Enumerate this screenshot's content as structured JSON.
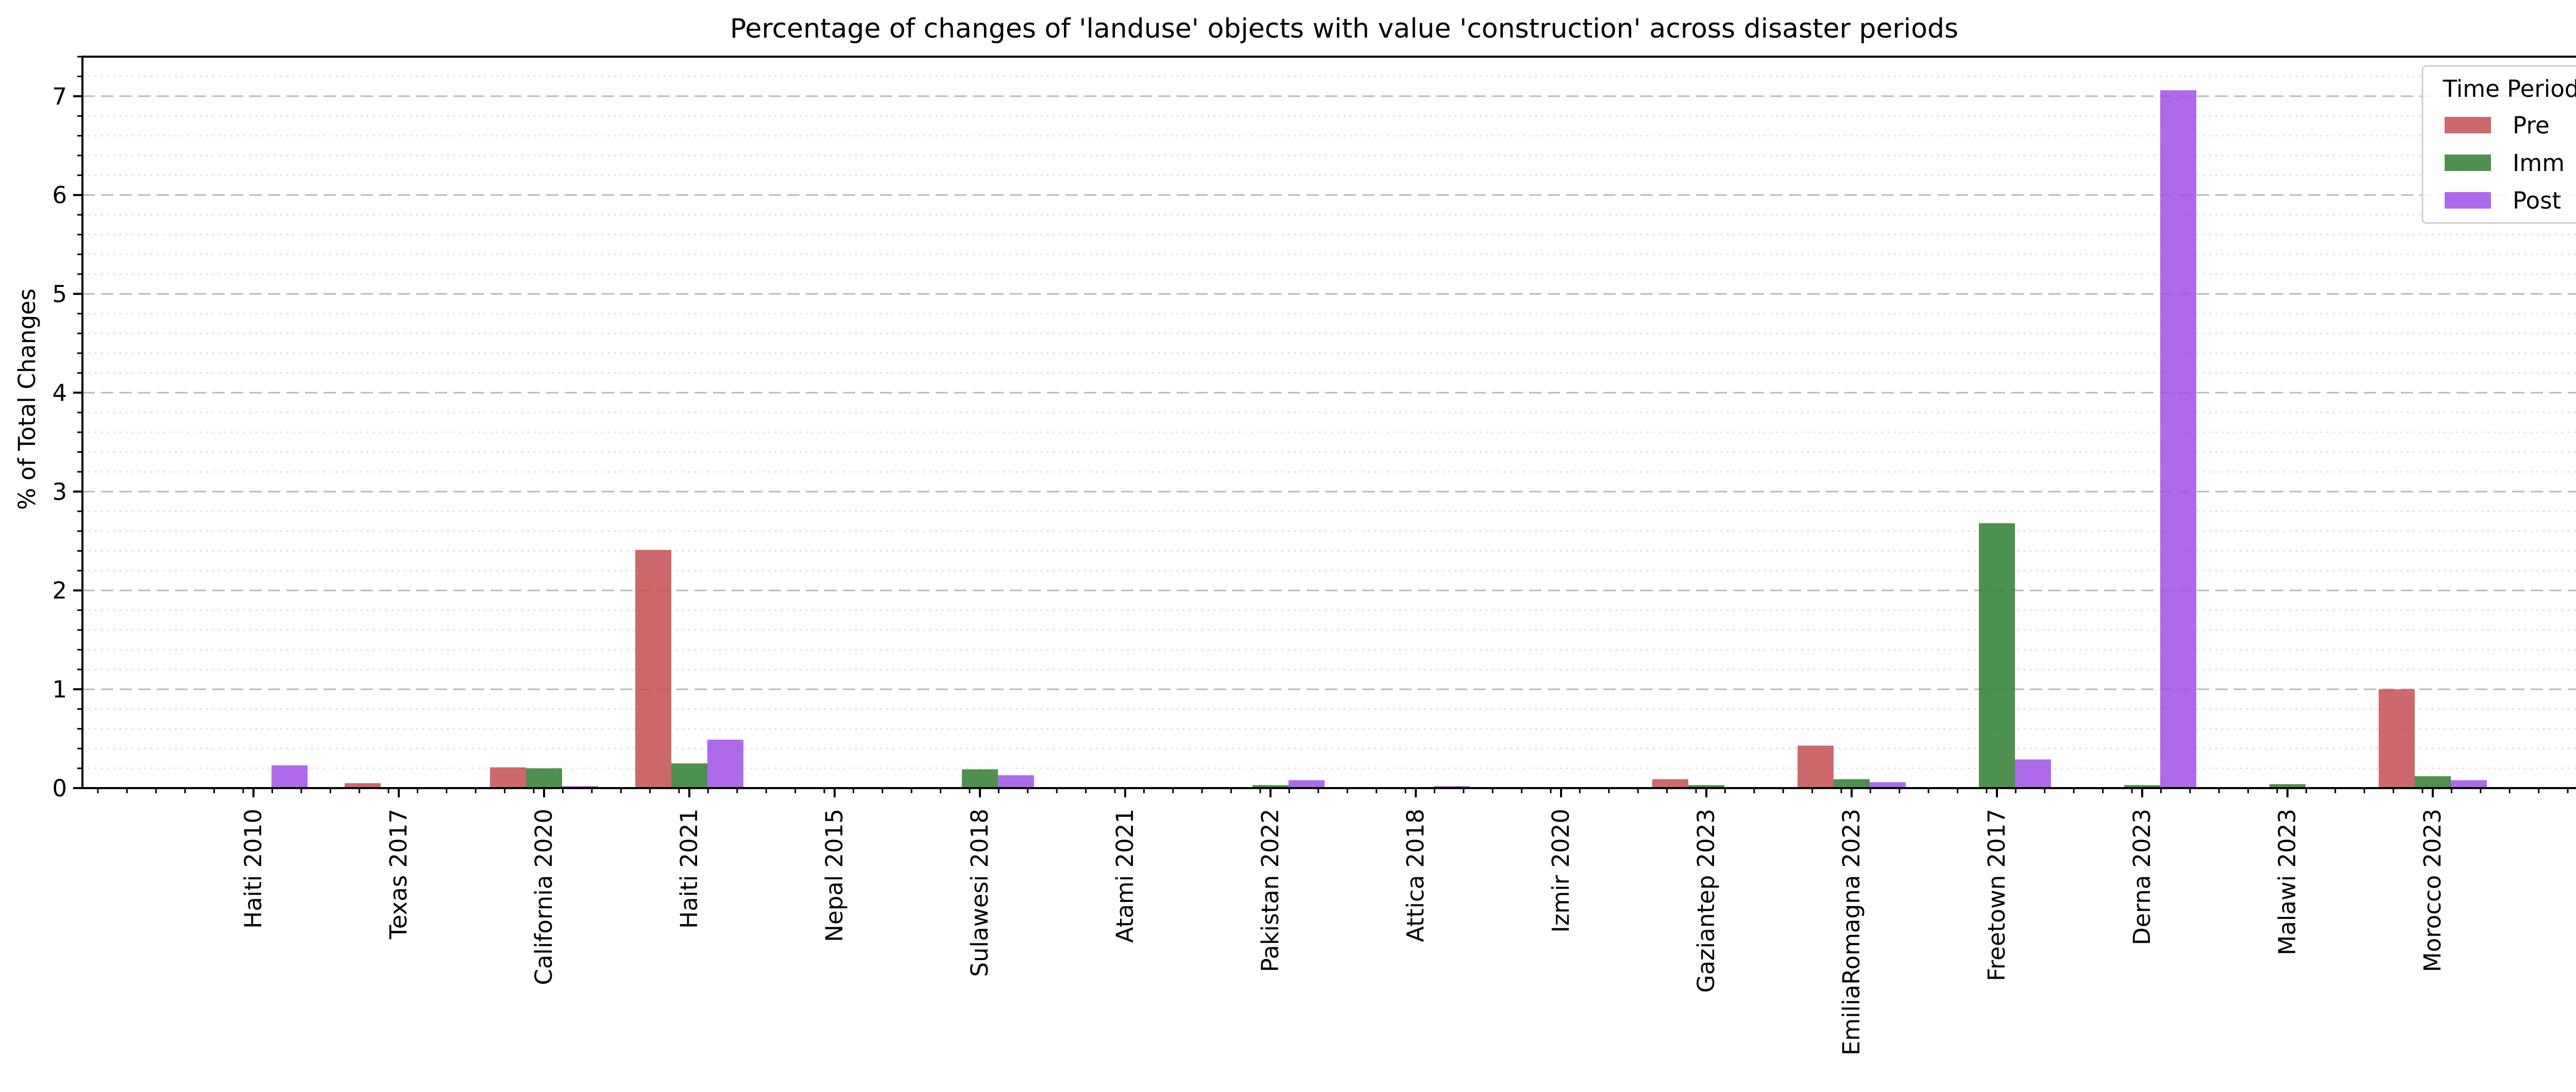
{
  "chart_data": {
    "type": "bar",
    "title": "Percentage of changes of 'landuse' objects with value 'construction' across disaster periods",
    "xlabel": "",
    "ylabel": "% of Total Changes",
    "ylim": [
      0,
      7.4
    ],
    "yticks": [
      "0",
      "1",
      "2",
      "3",
      "4",
      "5",
      "6",
      "7"
    ],
    "grid": true,
    "legend_title": "Time Period",
    "legend_position": "top-right",
    "categories": [
      "Haiti 2010",
      "Texas 2017",
      "California 2020",
      "Haiti 2021",
      "Nepal 2015",
      "Sulawesi 2018",
      "Atami 2021",
      "Pakistan 2022",
      "Attica 2018",
      "Izmir 2020",
      "Gaziantep 2023",
      "EmiliaRomagna 2023",
      "Freetown 2017",
      "Derna 2023",
      "Malawi 2023",
      "Morocco 2023"
    ],
    "series": [
      {
        "name": "Pre",
        "color": "#c44e52",
        "values": [
          0.0,
          0.05,
          0.21,
          2.41,
          0.0,
          0.0,
          0.0,
          0.0,
          0.0,
          0.01,
          0.09,
          0.43,
          0.0,
          0.0,
          0.0,
          1.0
        ]
      },
      {
        "name": "Imm",
        "color": "#2f7d2f",
        "values": [
          0.0,
          0.0,
          0.2,
          0.25,
          0.0,
          0.19,
          0.0,
          0.03,
          0.0,
          0.01,
          0.03,
          0.09,
          2.68,
          0.03,
          0.04,
          0.12
        ]
      },
      {
        "name": "Post",
        "color": "#a050e6",
        "values": [
          0.23,
          0.0,
          0.02,
          0.49,
          0.01,
          0.13,
          0.0,
          0.08,
          0.02,
          0.0,
          0.0,
          0.06,
          0.29,
          7.06,
          0.01,
          0.08
        ]
      }
    ]
  }
}
